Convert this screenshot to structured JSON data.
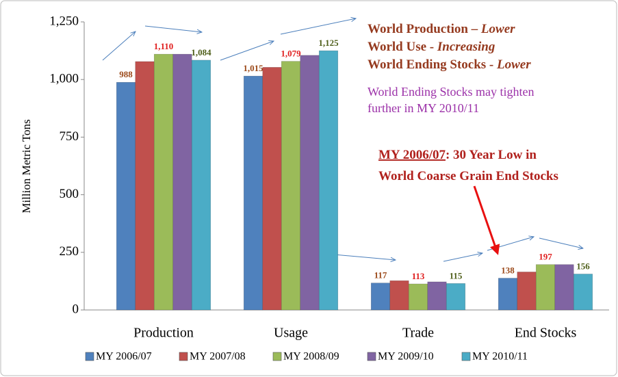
{
  "chart_data": {
    "type": "bar",
    "y_label": "Million Metric Tons",
    "categories": [
      "Production",
      "Usage",
      "Trade",
      "End Stocks"
    ],
    "ylim": [
      0,
      1250
    ],
    "yticks": [
      0,
      250,
      500,
      750,
      {
        "value": 1000,
        "label": "1,000"
      },
      {
        "value": 1250,
        "label": "1,250"
      }
    ],
    "grid": false,
    "legend": "bottom",
    "series": [
      {
        "name": "MY 2006/07",
        "color": "#4f81bd",
        "label_color": "#9c4a1a",
        "values": [
          988,
          1015,
          117,
          138
        ],
        "value_labels": [
          "988",
          "1,015",
          "117",
          "138"
        ]
      },
      {
        "name": "MY 2007/08",
        "color": "#c0504d",
        "values": [
          1078,
          1053,
          127,
          165
        ]
      },
      {
        "name": "MY 2008/09",
        "color": "#9bbb59",
        "label_color": "#e02020",
        "values": [
          1110,
          1079,
          113,
          197
        ],
        "value_labels": [
          "1,110",
          "1,079",
          "113",
          "197"
        ]
      },
      {
        "name": "MY 2009/10",
        "color": "#8064a2",
        "values": [
          1110,
          1105,
          122,
          197
        ]
      },
      {
        "name": "MY 2010/11",
        "color": "#4bacc6",
        "label_color": "#4f5f1a",
        "values": [
          1084,
          1125,
          115,
          156
        ],
        "value_labels": [
          "1,084",
          "1,125",
          "115",
          "156"
        ]
      }
    ],
    "annotations": {
      "outlook": [
        [
          "World Production – ",
          "Lower"
        ],
        [
          "World Use - ",
          "Increasing"
        ],
        [
          "World Ending Stocks - ",
          "Lower"
        ]
      ],
      "note": [
        "World Ending Stocks may tighten",
        "further in MY 2010/11"
      ],
      "callout": [
        [
          "MY 2006/07",
          ": 30 Year Low in"
        ],
        [
          "World Coarse Grain End Stocks"
        ]
      ]
    }
  }
}
